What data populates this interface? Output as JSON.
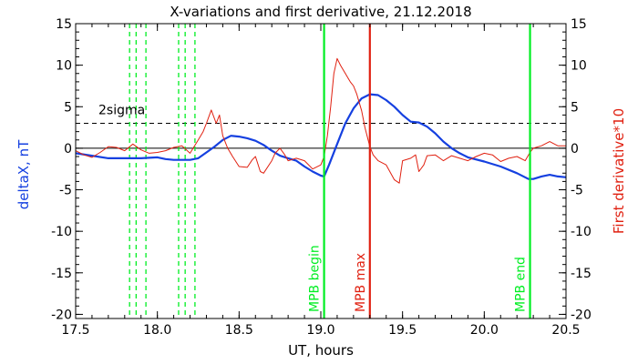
{
  "chart_data": {
    "type": "line",
    "title": "X-variations and first derivative, 21.12.2018",
    "xlabel": "UT, hours",
    "ylabel_left": "deltaX, nT",
    "ylabel_right": "First derivative*10",
    "xlim": [
      17.5,
      20.5
    ],
    "ylim": [
      -20.5,
      15
    ],
    "xticks": [
      17.5,
      18.0,
      18.5,
      19.0,
      19.5,
      20.0,
      20.5
    ],
    "xtick_labels": [
      "17.5",
      "18.0",
      "18.5",
      "19.0",
      "19.5",
      "20.0",
      "20.5"
    ],
    "yticks": [
      15,
      10,
      5,
      0,
      -5,
      -10,
      -15,
      -20
    ],
    "ytick_labels": [
      "15",
      "10",
      "5",
      "0",
      "-5",
      "-10",
      "-15",
      "-20"
    ],
    "colors": {
      "blue": "#1540e0",
      "red": "#e02010",
      "green": "#00ee22",
      "black": "#000000"
    },
    "threshold": {
      "label": "2sigma",
      "y": 3.0
    },
    "green_dashed_lines": [
      17.83,
      17.87,
      17.93,
      18.13,
      18.17,
      18.23
    ],
    "vertical_lines": [
      {
        "label": "MPB begin",
        "x": 19.02,
        "color": "#00ee22"
      },
      {
        "label": "MPB max",
        "x": 19.3,
        "color": "#e02010"
      },
      {
        "label": "MPB end",
        "x": 20.28,
        "color": "#00ee22"
      }
    ],
    "series": [
      {
        "axis": "left",
        "color": "#1540e0",
        "points": [
          [
            17.5,
            -0.6
          ],
          [
            17.6,
            -0.9
          ],
          [
            17.7,
            -1.2
          ],
          [
            17.8,
            -1.2
          ],
          [
            17.9,
            -1.2
          ],
          [
            18.0,
            -1.1
          ],
          [
            18.05,
            -1.3
          ],
          [
            18.1,
            -1.4
          ],
          [
            18.2,
            -1.4
          ],
          [
            18.25,
            -1.2
          ],
          [
            18.3,
            -0.5
          ],
          [
            18.35,
            0.2
          ],
          [
            18.4,
            1.0
          ],
          [
            18.45,
            1.5
          ],
          [
            18.5,
            1.4
          ],
          [
            18.55,
            1.2
          ],
          [
            18.6,
            0.9
          ],
          [
            18.65,
            0.4
          ],
          [
            18.7,
            -0.3
          ],
          [
            18.75,
            -0.9
          ],
          [
            18.8,
            -1.2
          ],
          [
            18.85,
            -1.5
          ],
          [
            18.9,
            -2.2
          ],
          [
            18.95,
            -2.8
          ],
          [
            19.0,
            -3.3
          ],
          [
            19.02,
            -3.4
          ],
          [
            19.05,
            -2.0
          ],
          [
            19.1,
            0.5
          ],
          [
            19.15,
            3.0
          ],
          [
            19.2,
            4.8
          ],
          [
            19.25,
            6.0
          ],
          [
            19.3,
            6.5
          ],
          [
            19.35,
            6.4
          ],
          [
            19.4,
            5.8
          ],
          [
            19.45,
            5.0
          ],
          [
            19.5,
            4.0
          ],
          [
            19.55,
            3.2
          ],
          [
            19.6,
            3.1
          ],
          [
            19.65,
            2.6
          ],
          [
            19.7,
            1.8
          ],
          [
            19.75,
            0.8
          ],
          [
            19.8,
            0.0
          ],
          [
            19.85,
            -0.6
          ],
          [
            19.9,
            -1.1
          ],
          [
            20.0,
            -1.6
          ],
          [
            20.1,
            -2.2
          ],
          [
            20.2,
            -3.0
          ],
          [
            20.27,
            -3.7
          ],
          [
            20.3,
            -3.7
          ],
          [
            20.35,
            -3.4
          ],
          [
            20.4,
            -3.2
          ],
          [
            20.45,
            -3.4
          ],
          [
            20.5,
            -3.5
          ]
        ]
      },
      {
        "axis": "right",
        "color": "#e02010",
        "points": [
          [
            17.5,
            -0.3
          ],
          [
            17.55,
            -0.8
          ],
          [
            17.6,
            -1.1
          ],
          [
            17.65,
            -0.5
          ],
          [
            17.7,
            0.2
          ],
          [
            17.75,
            0.1
          ],
          [
            17.8,
            -0.3
          ],
          [
            17.85,
            0.5
          ],
          [
            17.9,
            -0.2
          ],
          [
            17.95,
            -0.6
          ],
          [
            18.0,
            -0.5
          ],
          [
            18.05,
            -0.3
          ],
          [
            18.1,
            0.1
          ],
          [
            18.15,
            0.3
          ],
          [
            18.2,
            -0.6
          ],
          [
            18.25,
            1.0
          ],
          [
            18.28,
            2.0
          ],
          [
            18.3,
            3.0
          ],
          [
            18.33,
            4.6
          ],
          [
            18.36,
            3.0
          ],
          [
            18.38,
            4.0
          ],
          [
            18.4,
            1.5
          ],
          [
            18.43,
            0.0
          ],
          [
            18.46,
            -1.0
          ],
          [
            18.5,
            -2.2
          ],
          [
            18.55,
            -2.3
          ],
          [
            18.58,
            -1.4
          ],
          [
            18.6,
            -1.0
          ],
          [
            18.63,
            -2.8
          ],
          [
            18.65,
            -3.0
          ],
          [
            18.7,
            -1.5
          ],
          [
            18.72,
            -0.6
          ],
          [
            18.75,
            0.0
          ],
          [
            18.78,
            -0.8
          ],
          [
            18.8,
            -1.5
          ],
          [
            18.85,
            -1.2
          ],
          [
            18.9,
            -1.5
          ],
          [
            18.95,
            -2.5
          ],
          [
            19.0,
            -2.0
          ],
          [
            19.02,
            -1.0
          ],
          [
            19.04,
            1.5
          ],
          [
            19.06,
            5.0
          ],
          [
            19.08,
            9.0
          ],
          [
            19.1,
            10.8
          ],
          [
            19.12,
            10.0
          ],
          [
            19.15,
            9.0
          ],
          [
            19.18,
            8.0
          ],
          [
            19.2,
            7.5
          ],
          [
            19.22,
            6.5
          ],
          [
            19.25,
            4.5
          ],
          [
            19.27,
            2.5
          ],
          [
            19.3,
            0.2
          ],
          [
            19.32,
            -0.8
          ],
          [
            19.35,
            -1.5
          ],
          [
            19.4,
            -2.0
          ],
          [
            19.45,
            -3.8
          ],
          [
            19.48,
            -4.2
          ],
          [
            19.5,
            -1.5
          ],
          [
            19.55,
            -1.2
          ],
          [
            19.58,
            -0.8
          ],
          [
            19.6,
            -2.8
          ],
          [
            19.63,
            -2.0
          ],
          [
            19.65,
            -0.9
          ],
          [
            19.7,
            -0.8
          ],
          [
            19.75,
            -1.5
          ],
          [
            19.8,
            -0.9
          ],
          [
            19.85,
            -1.2
          ],
          [
            19.9,
            -1.5
          ],
          [
            19.95,
            -1.0
          ],
          [
            20.0,
            -0.6
          ],
          [
            20.05,
            -0.8
          ],
          [
            20.1,
            -1.6
          ],
          [
            20.15,
            -1.2
          ],
          [
            20.2,
            -1.0
          ],
          [
            20.25,
            -1.5
          ],
          [
            20.28,
            -0.5
          ],
          [
            20.3,
            0.0
          ],
          [
            20.35,
            0.3
          ],
          [
            20.4,
            0.8
          ],
          [
            20.45,
            0.3
          ],
          [
            20.5,
            0.3
          ]
        ]
      }
    ]
  }
}
